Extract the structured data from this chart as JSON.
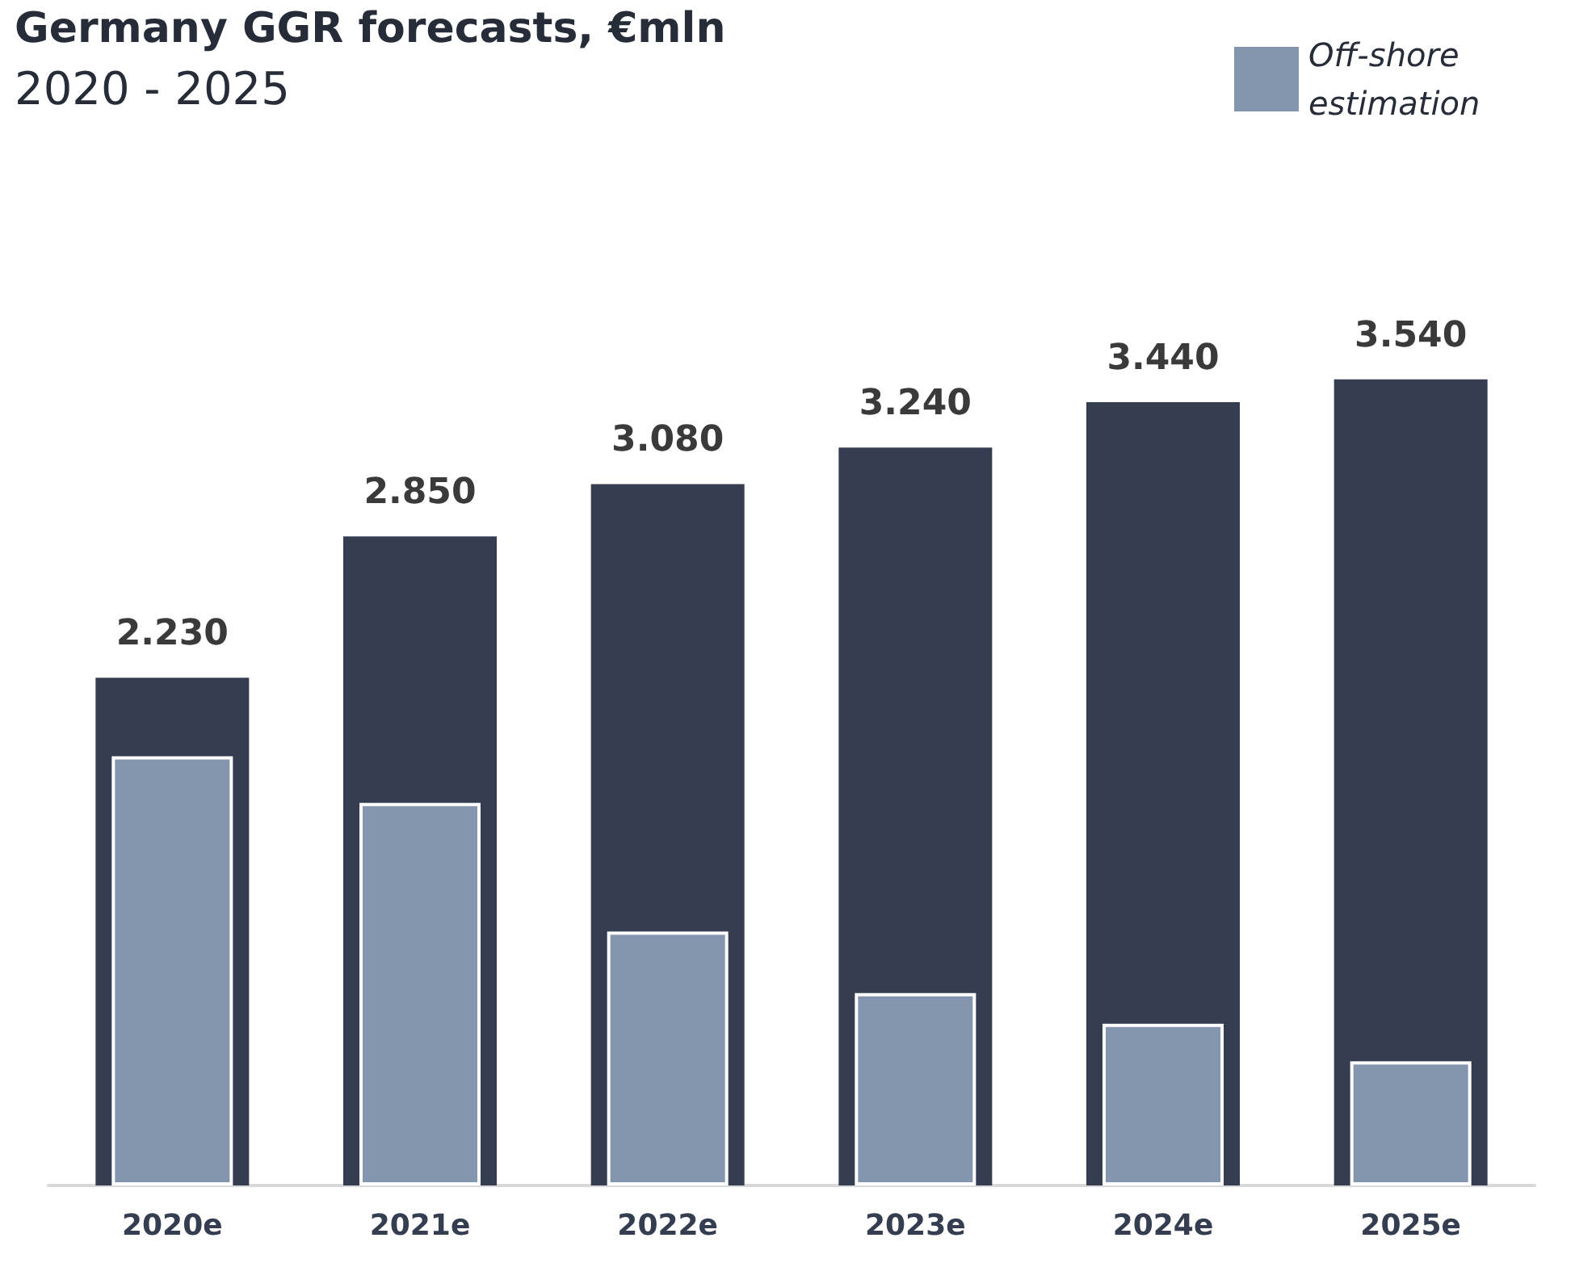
{
  "chart_data": {
    "type": "bar",
    "title": "Germany GGR forecasts, €mln",
    "subtitle": "2020 - 2025",
    "categories": [
      "2020e",
      "2021e",
      "2022e",
      "2023e",
      "2024e",
      "2025e"
    ],
    "series": [
      {
        "color": "#343e50",
        "values": [
          2230,
          2850,
          3080,
          3240,
          3440,
          3540
        ],
        "value_labels": [
          "2.230",
          "2.850",
          "3.080",
          "3.240",
          "3.440",
          "3.540"
        ]
      },
      {
        "name": "Off-shore estimation",
        "color": "#8496ae",
        "values": [
          1885,
          1680,
          1115,
          845,
          710,
          545
        ]
      }
    ],
    "legend": "top right"
  }
}
